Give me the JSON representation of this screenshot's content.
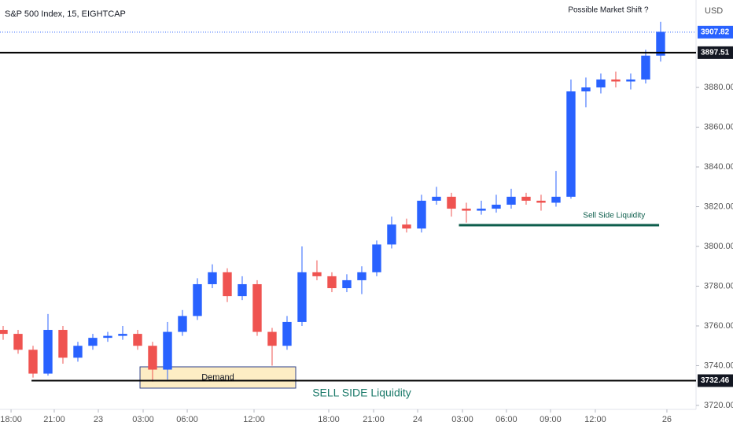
{
  "chart_data": {
    "type": "candlestick",
    "title": "S&P 500 Index, 15, EIGHTCAP",
    "currency": "USD",
    "up_color": "#2962ff",
    "down_color": "#ef5350",
    "open": [
      3758,
      3756,
      3748,
      3736,
      3758,
      3744,
      3750,
      3754,
      3755,
      3756,
      3750,
      3738,
      3757,
      3765,
      3781,
      3787,
      3775,
      3781,
      3757,
      3750,
      3762,
      3787,
      3785,
      3779,
      3783,
      3787,
      3801,
      3811,
      3809,
      3823,
      3825,
      3819,
      3818,
      3819,
      3821,
      3825,
      3823,
      3822,
      3825,
      3878,
      3880,
      3884,
      3883,
      3884,
      3896
    ],
    "high": [
      3760,
      3758,
      3750,
      3766,
      3760,
      3752,
      3756,
      3757,
      3760,
      3758,
      3752,
      3762,
      3768,
      3784,
      3791,
      3789,
      3785,
      3783,
      3759,
      3765,
      3800,
      3793,
      3787,
      3786,
      3790,
      3803,
      3815,
      3814,
      3826,
      3830,
      3827,
      3822,
      3823,
      3826,
      3829,
      3827,
      3826,
      3838,
      3884,
      3885,
      3887,
      3888,
      3887,
      3899,
      3913
    ],
    "low": [
      3753,
      3746,
      3734,
      3735,
      3741,
      3742,
      3748,
      3752,
      3753,
      3748,
      3732,
      3733,
      3755,
      3763,
      3779,
      3772,
      3773,
      3755,
      3740,
      3748,
      3760,
      3783,
      3777,
      3777,
      3776,
      3785,
      3799,
      3807,
      3807,
      3821,
      3815,
      3812,
      3816,
      3817,
      3819,
      3821,
      3818,
      3820,
      3824,
      3870,
      3877,
      3880,
      3879,
      3882,
      3893
    ],
    "close": [
      3756,
      3748,
      3736,
      3758,
      3744,
      3750,
      3754,
      3755,
      3756,
      3750,
      3738,
      3757,
      3765,
      3781,
      3787,
      3775,
      3781,
      3757,
      3750,
      3762,
      3787,
      3785,
      3779,
      3783,
      3787,
      3801,
      3811,
      3809,
      3823,
      3825,
      3819,
      3818,
      3819,
      3821,
      3825,
      3823,
      3822,
      3825,
      3878,
      3880,
      3884,
      3883,
      3884,
      3896,
      3908
    ],
    "ylim": [
      3718,
      3924
    ],
    "yticks": [
      {
        "value": 3720,
        "label": "3720.00"
      },
      {
        "value": 3740,
        "label": "3740.00"
      },
      {
        "value": 3760,
        "label": "3760.00"
      },
      {
        "value": 3780,
        "label": "3780.00"
      },
      {
        "value": 3800,
        "label": "3800.00"
      },
      {
        "value": 3820,
        "label": "3820.00"
      },
      {
        "value": 3840,
        "label": "3840.00"
      },
      {
        "value": 3860,
        "label": "3860.00"
      },
      {
        "value": 3880,
        "label": "3880.00"
      }
    ],
    "xlim": [
      -0.21,
      46.37
    ],
    "xticks": [
      {
        "value": 0.53,
        "label": "18:00"
      },
      {
        "value": 3.42,
        "label": "21:00"
      },
      {
        "value": 6.37,
        "label": "23"
      },
      {
        "value": 9.37,
        "label": "03:00"
      },
      {
        "value": 12.32,
        "label": "06:00"
      },
      {
        "value": 16.79,
        "label": "12:00"
      },
      {
        "value": 21.79,
        "label": "18:00"
      },
      {
        "value": 24.79,
        "label": "21:00"
      },
      {
        "value": 27.74,
        "label": "24"
      },
      {
        "value": 30.74,
        "label": "03:00"
      },
      {
        "value": 33.68,
        "label": "06:00"
      },
      {
        "value": 36.63,
        "label": "09:00"
      },
      {
        "value": 39.63,
        "label": "12:00"
      },
      {
        "value": 44.42,
        "label": "26"
      }
    ],
    "last_price": 3907.82,
    "levels": [
      {
        "value": 3897.51,
        "x": [
          -0.21,
          46.37
        ]
      },
      {
        "value": 3732.46,
        "x": [
          1.9,
          46.37
        ]
      }
    ],
    "sell_side_line": {
      "label": "Sell Side Liquidity",
      "value": 3810.7,
      "x": [
        30.5,
        43.9
      ],
      "color": "#0d5e4c"
    },
    "zone": {
      "label": "Demand",
      "y": [
        3728.7,
        3739.4
      ],
      "x": [
        9.16,
        19.58
      ]
    },
    "annotations": [
      {
        "text": "Possible Market Shift ?",
        "x": 40.5,
        "y": 3919
      },
      {
        "text": "SELL SIDE Liquidity",
        "x": 24,
        "y": 3726
      }
    ]
  }
}
